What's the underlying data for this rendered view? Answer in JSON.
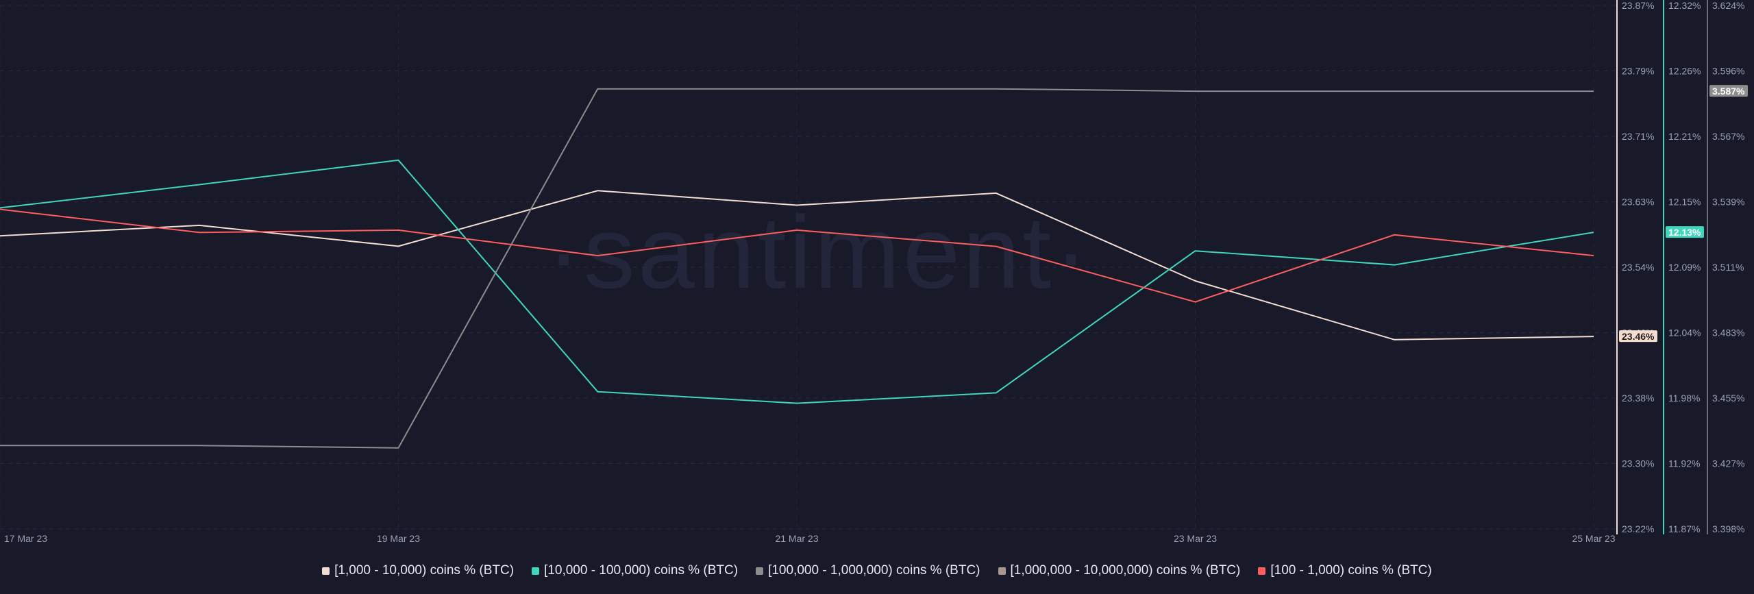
{
  "watermark": "·santiment·",
  "legend": [
    {
      "label": "[1,000 - 10,000) coins % (BTC)",
      "color": "#f2ddd0"
    },
    {
      "label": "[10,000 - 100,000) coins % (BTC)",
      "color": "#3fd6bd"
    },
    {
      "label": "[100,000  - 1,000,000) coins % (BTC)",
      "color": "#8d8d8d"
    },
    {
      "label": "[1,000,000 - 10,000,000) coins % (BTC)",
      "color": "#a89690"
    },
    {
      "label": "[100 - 1,000) coins % (BTC)",
      "color": "#ff5e5e"
    }
  ],
  "chart_data": {
    "type": "line",
    "x": [
      "17 Mar 23",
      "18 Mar 23",
      "19 Mar 23",
      "20 Mar 23",
      "21 Mar 23",
      "22 Mar 23",
      "23 Mar 23",
      "24 Mar 23",
      "25 Mar 23"
    ],
    "xticks": [
      "17 Mar 23",
      "19 Mar 23",
      "21 Mar 23",
      "23 Mar 23",
      "25 Mar 23"
    ],
    "grid": true,
    "legend_position": "bottom",
    "axes": [
      {
        "id": "a1",
        "ylim": [
          23.22,
          23.87
        ],
        "ticks": [
          "23.87%",
          "23.79%",
          "23.71%",
          "23.63%",
          "23.54%",
          "23.46%",
          "23.38%",
          "23.30%",
          "23.22%"
        ],
        "line_color": "#f2ddd0",
        "badge": "23.46%",
        "badge_value": 23.459,
        "badge_bg": "#f2ddd0",
        "badge_fg": "#2a1d1d"
      },
      {
        "id": "a2",
        "ylim": [
          11.87,
          12.32
        ],
        "ticks": [
          "12.32%",
          "12.26%",
          "12.21%",
          "12.15%",
          "12.09%",
          "12.04%",
          "11.98%",
          "11.92%",
          "11.87%"
        ],
        "line_color": "#3fd6bd",
        "badge": "12.13%",
        "badge_value": 12.125,
        "badge_bg": "#3fd6bd",
        "badge_fg": "#ffffff"
      },
      {
        "id": "a3",
        "ylim": [
          3.398,
          3.624
        ],
        "ticks": [
          "3.624%",
          "3.596%",
          "3.567%",
          "3.539%",
          "3.511%",
          "3.483%",
          "3.455%",
          "3.427%",
          "3.398%"
        ],
        "line_color": "#6c6f80",
        "badge": "3.587%",
        "badge_value": 3.587,
        "badge_bg": "#8d8d8d",
        "badge_fg": "#ffffff"
      }
    ],
    "series": [
      {
        "name": "[1,000 - 10,000) coins % (BTC)",
        "axis": "a1",
        "color": "#f2ddd0",
        "values": [
          23.584,
          23.597,
          23.571,
          23.64,
          23.622,
          23.637,
          23.528,
          23.455,
          23.459
        ]
      },
      {
        "name": "[10,000 - 100,000) coins % (BTC)",
        "axis": "a2",
        "color": "#3fd6bd",
        "values": [
          12.146,
          12.166,
          12.187,
          11.988,
          11.978,
          11.987,
          12.109,
          12.097,
          12.125
        ]
      },
      {
        "name": "[100,000  - 1,000,000) coins % (BTC)",
        "axis": "a3",
        "color": "#8d8d8d",
        "values": [
          3.434,
          3.434,
          3.433,
          3.588,
          3.588,
          3.588,
          3.587,
          3.587,
          3.587
        ]
      },
      {
        "name": "[100 - 1,000) coins % (BTC)",
        "axis": "a3",
        "color": "#ff5e5e",
        "values": [
          3.536,
          3.526,
          3.527,
          3.516,
          3.527,
          3.52,
          3.496,
          3.525,
          3.516
        ]
      }
    ]
  }
}
